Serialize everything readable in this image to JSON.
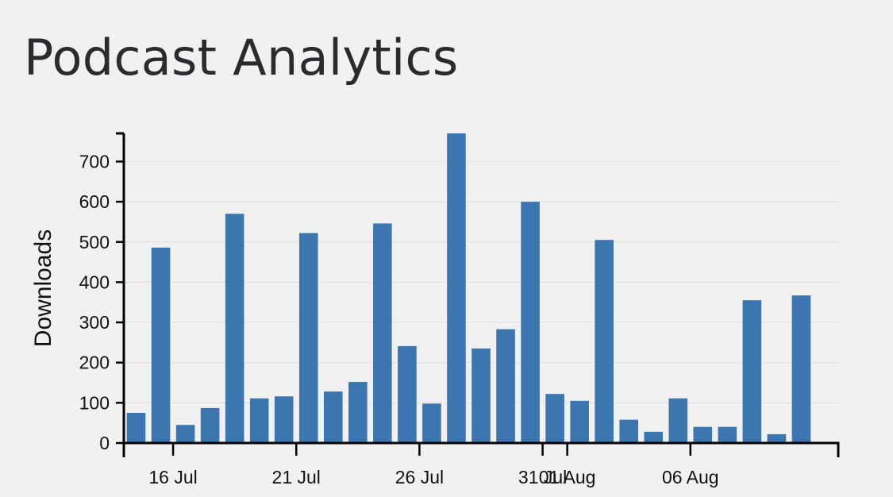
{
  "page": {
    "title": "Podcast Analytics"
  },
  "colors": {
    "background": "#f1f1f1",
    "bar": "#3b76b0",
    "gridline": "#e2e2e2",
    "axis": "#000000",
    "title_text": "#2b2b2f"
  },
  "chart_data": {
    "type": "bar",
    "title": "",
    "xlabel": "",
    "ylabel": "Downloads",
    "ylim": [
      0,
      770
    ],
    "grid": "horizontal",
    "legend": "none",
    "x_type": "date",
    "x": [
      "2025-07-14",
      "2025-07-15",
      "2025-07-16",
      "2025-07-17",
      "2025-07-18",
      "2025-07-19",
      "2025-07-20",
      "2025-07-21",
      "2025-07-22",
      "2025-07-23",
      "2025-07-24",
      "2025-07-25",
      "2025-07-26",
      "2025-07-27",
      "2025-07-28",
      "2025-07-29",
      "2025-07-30",
      "2025-07-31",
      "2025-08-01",
      "2025-08-02",
      "2025-08-03",
      "2025-08-04",
      "2025-08-05",
      "2025-08-06",
      "2025-08-07",
      "2025-08-08",
      "2025-08-09",
      "2025-08-10",
      "2025-08-11"
    ],
    "values": [
      75,
      486,
      45,
      87,
      570,
      111,
      116,
      522,
      128,
      152,
      546,
      241,
      98,
      770,
      235,
      283,
      600,
      122,
      105,
      505,
      58,
      28,
      111,
      40,
      40,
      355,
      22,
      367,
      0
    ],
    "yticks": [
      0,
      100,
      200,
      300,
      400,
      500,
      600,
      700
    ],
    "ytick_labels": [
      "0",
      "100",
      "200",
      "300",
      "400",
      "500",
      "600",
      "700"
    ],
    "xticks": [
      "2025-07-16",
      "2025-07-21",
      "2025-07-26",
      "2025-07-31",
      "2025-08-01",
      "2025-08-06"
    ],
    "xtick_labels": [
      "16 Jul",
      "21 Jul",
      "26 Jul",
      "31 Jul",
      "01 Aug",
      "06 Aug"
    ]
  }
}
